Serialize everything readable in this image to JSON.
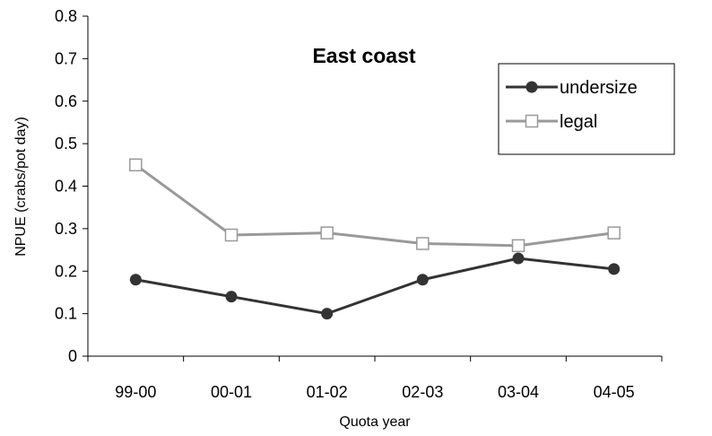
{
  "chart_data": {
    "type": "line",
    "title": "East coast",
    "xlabel": "Quota year",
    "ylabel": "NPUE (crabs/pot day)",
    "categories": [
      "99-00",
      "00-01",
      "01-02",
      "02-03",
      "03-04",
      "04-05"
    ],
    "ylim": [
      0,
      0.8
    ],
    "yticks": [
      "0",
      "0.1",
      "0.2",
      "0.3",
      "0.4",
      "0.5",
      "0.6",
      "0.7",
      "0.8"
    ],
    "grid": false,
    "legend_position": "top-right",
    "series": [
      {
        "name": "undersize",
        "values": [
          0.18,
          0.14,
          0.1,
          0.18,
          0.23,
          0.205
        ],
        "color": "#333333",
        "marker": "filled-circle"
      },
      {
        "name": "legal",
        "values": [
          0.45,
          0.285,
          0.29,
          0.265,
          0.26,
          0.29
        ],
        "color": "#999999",
        "marker": "open-square"
      }
    ]
  }
}
